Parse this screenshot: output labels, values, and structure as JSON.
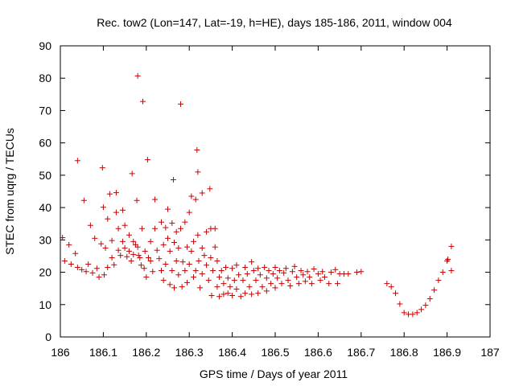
{
  "chart_data": {
    "type": "scatter",
    "title": "Rec. tow2 (Lon=147, Lat=-19, h=HE), days 185-186, 2011, window 004",
    "xlabel": "GPS time / Days of year 2011",
    "ylabel": "STEC from uqrg / TECUs",
    "xlim": [
      186,
      187
    ],
    "ylim": [
      0,
      90
    ],
    "grid": false,
    "marker": "+",
    "x_ticks": [
      186,
      186.1,
      186.2,
      186.3,
      186.4,
      186.5,
      186.6,
      186.7,
      186.8,
      186.9,
      187
    ],
    "x_tick_labels": [
      "186",
      "186.1",
      "186.2",
      "186.3",
      "186.4",
      "186.5",
      "186.6",
      "186.7",
      "186.8",
      "186.9",
      "187"
    ],
    "y_ticks": [
      0,
      10,
      20,
      30,
      40,
      50,
      60,
      70,
      80,
      90
    ],
    "y_tick_labels": [
      "0",
      "10",
      "20",
      "30",
      "40",
      "50",
      "60",
      "70",
      "80",
      "90"
    ],
    "series": [
      {
        "name": "STEC",
        "color": "#cc0000",
        "points": [
          [
            186.005,
            30.7
          ],
          [
            186.01,
            23.5
          ],
          [
            186.02,
            28.5
          ],
          [
            186.025,
            22.5
          ],
          [
            186.035,
            25.8
          ],
          [
            186.04,
            54.5
          ],
          [
            186.04,
            21.5
          ],
          [
            186.05,
            20.8
          ],
          [
            186.055,
            42.2
          ],
          [
            186.06,
            20.2
          ],
          [
            186.065,
            22.5
          ],
          [
            186.07,
            34.5
          ],
          [
            186.075,
            19.8
          ],
          [
            186.08,
            30.5
          ],
          [
            186.085,
            21.2
          ],
          [
            186.09,
            18.5
          ],
          [
            186.095,
            28.8
          ],
          [
            186.098,
            52.3
          ],
          [
            186.1,
            40.1
          ],
          [
            186.102,
            19.2
          ],
          [
            186.105,
            27.5
          ],
          [
            186.11,
            36.5
          ],
          [
            186.11,
            21.5
          ],
          [
            186.115,
            44.2
          ],
          [
            186.12,
            29.8
          ],
          [
            186.12,
            24.5
          ],
          [
            186.125,
            22.3
          ],
          [
            186.13,
            44.6
          ],
          [
            186.13,
            38.5
          ],
          [
            186.135,
            33.5
          ],
          [
            186.135,
            26.8
          ],
          [
            186.14,
            25.2
          ],
          [
            186.145,
            39.2
          ],
          [
            186.145,
            29.5
          ],
          [
            186.15,
            34.5
          ],
          [
            186.15,
            27.5
          ],
          [
            186.155,
            24.8
          ],
          [
            186.16,
            31.5
          ],
          [
            186.16,
            26.5
          ],
          [
            186.165,
            23.5
          ],
          [
            186.167,
            50.5
          ],
          [
            186.17,
            29.5
          ],
          [
            186.17,
            25.5
          ],
          [
            186.175,
            28.5
          ],
          [
            186.178,
            42.2
          ],
          [
            186.18,
            80.7
          ],
          [
            186.18,
            27.8
          ],
          [
            186.182,
            25.2
          ],
          [
            186.185,
            24.5
          ],
          [
            186.188,
            22.2
          ],
          [
            186.19,
            33.5
          ],
          [
            186.192,
            72.8
          ],
          [
            186.195,
            21.2
          ],
          [
            186.197,
            26.5
          ],
          [
            186.2,
            18.5
          ],
          [
            186.203,
            54.8
          ],
          [
            186.205,
            24.5
          ],
          [
            186.21,
            29.5
          ],
          [
            186.21,
            23.5
          ],
          [
            186.215,
            20.2
          ],
          [
            186.22,
            42.5
          ],
          [
            186.22,
            33.5
          ],
          [
            186.225,
            26.8
          ],
          [
            186.23,
            24.2
          ],
          [
            186.235,
            35.5
          ],
          [
            186.235,
            20.5
          ],
          [
            186.24,
            28.5
          ],
          [
            186.24,
            17.5
          ],
          [
            186.245,
            33.8
          ],
          [
            186.245,
            22.5
          ],
          [
            186.25,
            39.5
          ],
          [
            186.25,
            30.5
          ],
          [
            186.255,
            26.5
          ],
          [
            186.255,
            16.2
          ],
          [
            186.26,
            35.2
          ],
          [
            186.26,
            20.5
          ],
          [
            186.263,
            48.6
          ],
          [
            186.265,
            29.2
          ],
          [
            186.265,
            15.2
          ],
          [
            186.27,
            32.5
          ],
          [
            186.27,
            23.5
          ],
          [
            186.275,
            27.5
          ],
          [
            186.275,
            19.2
          ],
          [
            186.28,
            72.0
          ],
          [
            186.28,
            33.5
          ],
          [
            186.283,
            15.5
          ],
          [
            186.285,
            23.2
          ],
          [
            186.29,
            35.5
          ],
          [
            186.29,
            20.5
          ],
          [
            186.295,
            27.8
          ],
          [
            186.295,
            16.8
          ],
          [
            186.3,
            38.5
          ],
          [
            186.3,
            22.5
          ],
          [
            186.305,
            43.5
          ],
          [
            186.305,
            26.5
          ],
          [
            186.31,
            29.5
          ],
          [
            186.31,
            18.5
          ],
          [
            186.315,
            42.5
          ],
          [
            186.315,
            20.5
          ],
          [
            186.318,
            57.8
          ],
          [
            186.32,
            51.0
          ],
          [
            186.32,
            31.5
          ],
          [
            186.322,
            23.5
          ],
          [
            186.325,
            15.2
          ],
          [
            186.33,
            44.5
          ],
          [
            186.33,
            27.5
          ],
          [
            186.33,
            19.5
          ],
          [
            186.335,
            25.2
          ],
          [
            186.34,
            32.5
          ],
          [
            186.34,
            22.2
          ],
          [
            186.345,
            17.5
          ],
          [
            186.348,
            45.8
          ],
          [
            186.35,
            33.5
          ],
          [
            186.35,
            24.5
          ],
          [
            186.352,
            12.8
          ],
          [
            186.355,
            20.5
          ],
          [
            186.36,
            33.5
          ],
          [
            186.36,
            27.8
          ],
          [
            186.365,
            23.5
          ],
          [
            186.365,
            15.5
          ],
          [
            186.37,
            18.5
          ],
          [
            186.37,
            12.5
          ],
          [
            186.375,
            20.5
          ],
          [
            186.38,
            16.5
          ],
          [
            186.38,
            13.2
          ],
          [
            186.385,
            21.5
          ],
          [
            186.39,
            18.2
          ],
          [
            186.39,
            13.5
          ],
          [
            186.395,
            15.5
          ],
          [
            186.4,
            21.2
          ],
          [
            186.4,
            12.8
          ],
          [
            186.405,
            17.5
          ],
          [
            186.41,
            22.2
          ],
          [
            186.41,
            14.8
          ],
          [
            186.415,
            19.2
          ],
          [
            186.42,
            12.5
          ],
          [
            186.425,
            17.5
          ],
          [
            186.43,
            21.5
          ],
          [
            186.43,
            13.5
          ],
          [
            186.435,
            19.5
          ],
          [
            186.44,
            15.5
          ],
          [
            186.445,
            23.2
          ],
          [
            186.445,
            13.2
          ],
          [
            186.45,
            20.5
          ],
          [
            186.455,
            17.5
          ],
          [
            186.46,
            21.2
          ],
          [
            186.46,
            13.5
          ],
          [
            186.465,
            19.2
          ],
          [
            186.47,
            15.5
          ],
          [
            186.475,
            21.5
          ],
          [
            186.48,
            18.2
          ],
          [
            186.48,
            14.2
          ],
          [
            186.485,
            20.5
          ],
          [
            186.49,
            16.5
          ],
          [
            186.495,
            19.5
          ],
          [
            186.5,
            21.5
          ],
          [
            186.5,
            15.2
          ],
          [
            186.505,
            18.2
          ],
          [
            186.51,
            20.5
          ],
          [
            186.515,
            16.5
          ],
          [
            186.52,
            19.8
          ],
          [
            186.525,
            21.2
          ],
          [
            186.53,
            17.5
          ],
          [
            186.535,
            15.8
          ],
          [
            186.54,
            20.2
          ],
          [
            186.545,
            21.8
          ],
          [
            186.55,
            18.5
          ],
          [
            186.555,
            16.5
          ],
          [
            186.56,
            20.5
          ],
          [
            186.565,
            19.2
          ],
          [
            186.57,
            17.2
          ],
          [
            186.575,
            20.2
          ],
          [
            186.58,
            18.5
          ],
          [
            186.585,
            16.5
          ],
          [
            186.59,
            21.0
          ],
          [
            186.6,
            19.5
          ],
          [
            186.605,
            17.5
          ],
          [
            186.61,
            20.2
          ],
          [
            186.615,
            18.5
          ],
          [
            186.625,
            16.5
          ],
          [
            186.63,
            20.0
          ],
          [
            186.64,
            20.8
          ],
          [
            186.645,
            16.5
          ],
          [
            186.65,
            19.5
          ],
          [
            186.66,
            19.5
          ],
          [
            186.67,
            19.5
          ],
          [
            186.69,
            20.0
          ],
          [
            186.7,
            20.2
          ],
          [
            186.76,
            16.5
          ],
          [
            186.77,
            15.5
          ],
          [
            186.78,
            13.5
          ],
          [
            186.79,
            10.2
          ],
          [
            186.8,
            7.5
          ],
          [
            186.81,
            7.0
          ],
          [
            186.82,
            7.0
          ],
          [
            186.83,
            7.5
          ],
          [
            186.84,
            8.5
          ],
          [
            186.85,
            9.8
          ],
          [
            186.86,
            11.8
          ],
          [
            186.87,
            14.5
          ],
          [
            186.88,
            17.5
          ],
          [
            186.89,
            20.0
          ],
          [
            186.9,
            23.5
          ],
          [
            186.902,
            24.0
          ],
          [
            186.91,
            28.0
          ],
          [
            186.91,
            20.5
          ]
        ]
      }
    ]
  }
}
